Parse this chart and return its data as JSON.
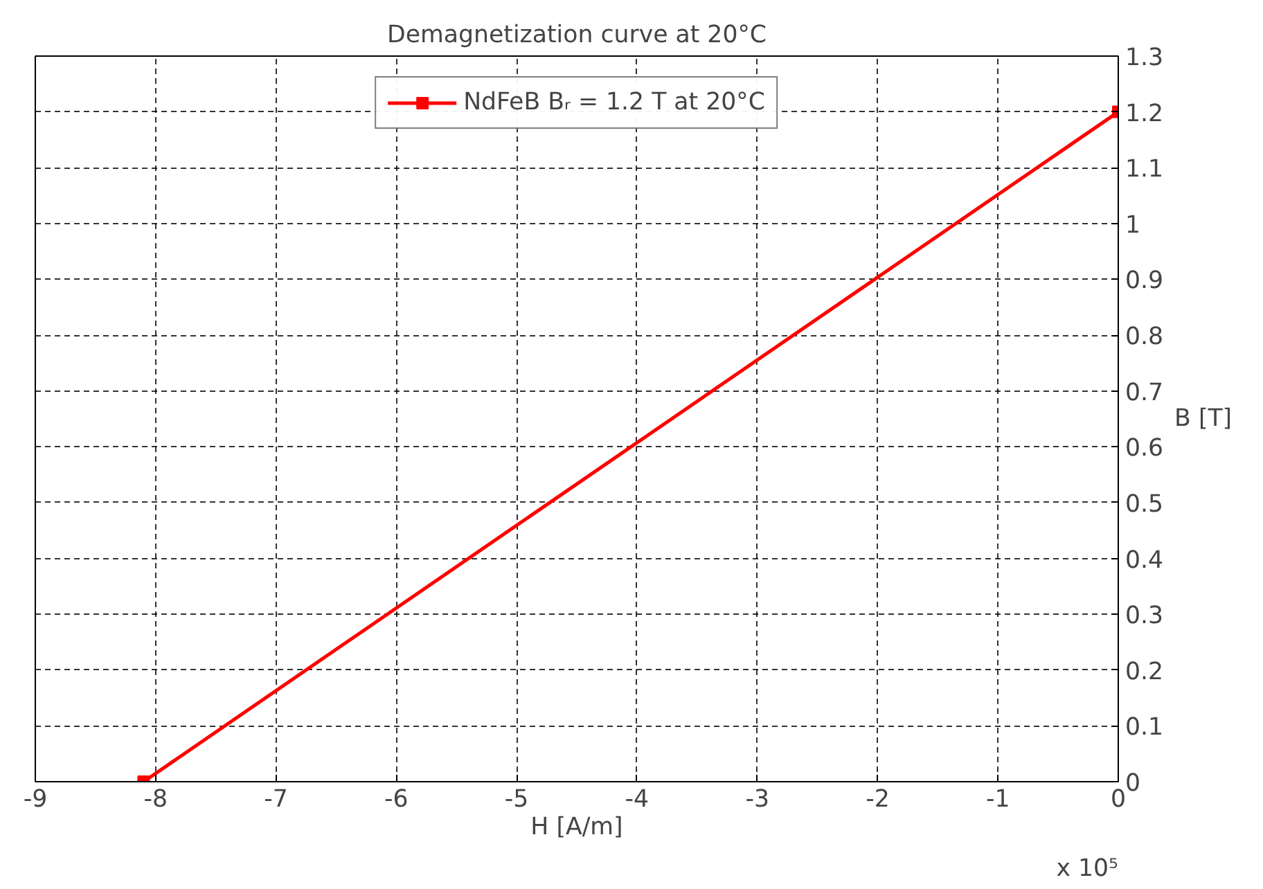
{
  "chart_data": {
    "type": "line",
    "title": "Demagnetization curve at 20°C",
    "xlabel": "H [A/m]",
    "ylabel": "B [T]",
    "x": [
      -8.1,
      0
    ],
    "series": [
      {
        "name": "NdFeB Bᵣ = 1.2 T at 20°C",
        "color": "#ff0000",
        "values": [
          0,
          1.2
        ]
      }
    ],
    "xlim": [
      -9,
      0
    ],
    "xticks": [
      -9,
      -8,
      -7,
      -6,
      -5,
      -4,
      -3,
      -2,
      -1,
      0
    ],
    "ylim": [
      0,
      1.3
    ],
    "yticks": [
      0,
      0.1,
      0.2,
      0.3,
      0.4,
      0.5,
      0.6,
      0.7,
      0.8,
      0.9,
      1,
      1.1,
      1.2,
      1.3
    ],
    "annotations": [
      "x 10⁵"
    ],
    "grid": true,
    "legend": "top",
    "marker": "square",
    "line_style": "solid"
  }
}
